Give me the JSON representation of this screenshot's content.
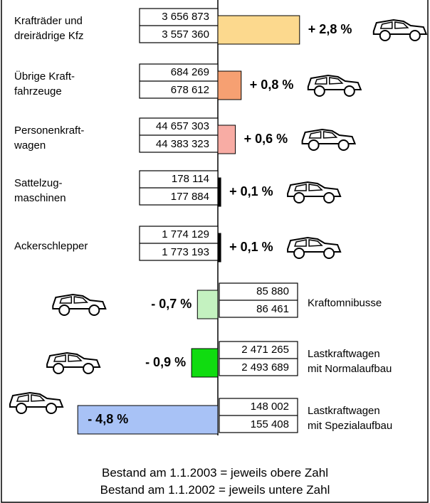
{
  "chart_data": {
    "type": "bar",
    "orientation": "horizontal",
    "categories": [
      "Krafträder und\ndreirädrige Kfz",
      "Übrige Kraft-\nfahrzeuge",
      "Personenkraft-\nwagen",
      "Sattelzug-\nmaschinen",
      "Ackerschlepper",
      "Kraftomnibusse",
      "Lastkraftwagen\nmit Normalaufbau",
      "Lastkraftwagen\nmit Spezialaufbau"
    ],
    "values": [
      2.8,
      0.8,
      0.6,
      0.1,
      0.1,
      -0.7,
      -0.9,
      -4.8
    ],
    "value_labels": [
      "+ 2,8 %",
      "+ 0,8 %",
      "+ 0,6 %",
      "+ 0,1 %",
      "+ 0,1 %",
      "- 0,7 %",
      "- 0,9 %",
      "- 4,8 %"
    ],
    "colors": [
      "#fcd98e",
      "#f6a072",
      "#f8aca4",
      "#000000",
      "#000000",
      "#c4f2c0",
      "#10dc10",
      "#a8c2f6"
    ],
    "stock_2003": [
      "3 656 873",
      "684 269",
      "44 657 303",
      "178 114",
      "1 774 129",
      "85 880",
      "2 471 265",
      "148 002"
    ],
    "stock_2002": [
      "3 557 360",
      "678 612",
      "44 383 323",
      "177 884",
      "1 773 193",
      "86 461",
      "2 493 689",
      "155 408"
    ],
    "notes": [
      "Bestand am 1.1.2003 = jeweils obere Zahl",
      "Bestand am 1.1.2002 = jeweils untere Zahl"
    ]
  }
}
